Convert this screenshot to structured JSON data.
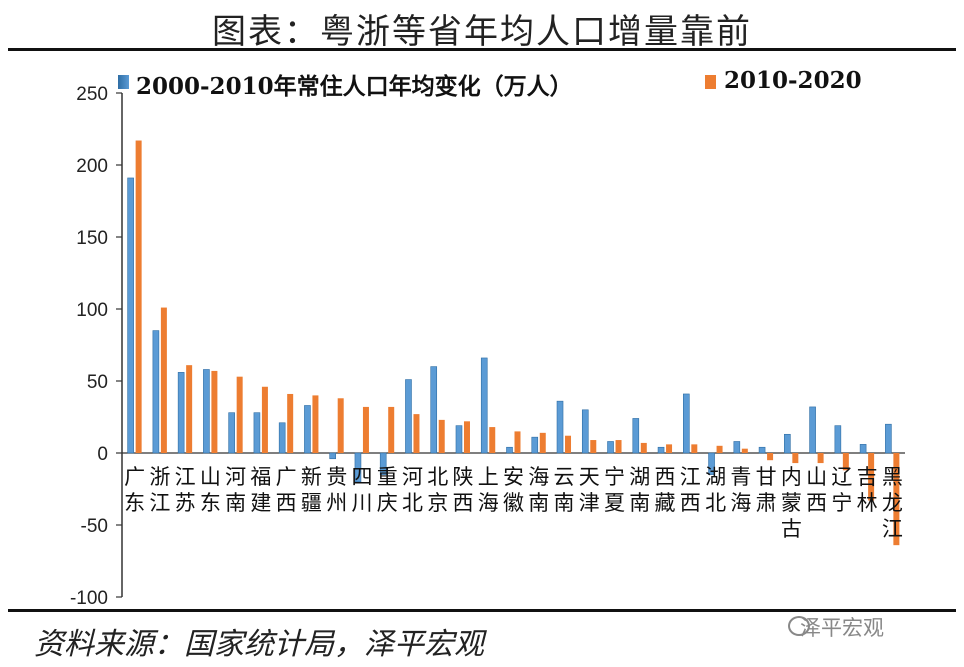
{
  "page": {
    "title": "图表：粤浙等省年均人口增量靠前",
    "source": "资料来源：国家统计局，泽平宏观",
    "watermark": "泽平宏观"
  },
  "colors": {
    "series1": "#5b9bd5",
    "series1_dark": "#2e6da4",
    "series2": "#ed7d31",
    "axis": "#333333"
  },
  "chart_data": {
    "type": "bar",
    "title": "图表：粤浙等省年均人口增量靠前",
    "xlabel": "",
    "ylabel": "",
    "ylim": [
      -100,
      250
    ],
    "yticks": [
      -100,
      -50,
      0,
      50,
      100,
      150,
      200,
      250
    ],
    "legend_position": "top",
    "categories": [
      "广东",
      "浙江",
      "江苏",
      "山东",
      "河南",
      "福建",
      "广西",
      "新疆",
      "贵州",
      "四川",
      "重庆",
      "河北",
      "北京",
      "陕西",
      "上海",
      "安徽",
      "海南",
      "云南",
      "天津",
      "宁夏",
      "湖南",
      "西藏",
      "江西",
      "湖北",
      "青海",
      "甘肃",
      "内蒙古",
      "山西",
      "辽宁",
      "吉林",
      "黑龙江"
    ],
    "series": [
      {
        "name": "2000-2010年常住人口年均变化（万人）",
        "values": [
          191,
          85,
          56,
          58,
          28,
          28,
          21,
          33,
          -4,
          -20,
          -15,
          51,
          60,
          19,
          66,
          4,
          11,
          36,
          30,
          8,
          24,
          4,
          41,
          -15,
          8,
          4,
          13,
          32,
          19,
          6,
          20
        ]
      },
      {
        "name": "2010-2020",
        "values": [
          217,
          101,
          61,
          57,
          53,
          46,
          41,
          40,
          38,
          32,
          32,
          27,
          23,
          22,
          18,
          15,
          14,
          12,
          9,
          9,
          7,
          6,
          6,
          5,
          3,
          -5,
          -7,
          -7,
          -12,
          -33,
          -64
        ]
      }
    ]
  }
}
